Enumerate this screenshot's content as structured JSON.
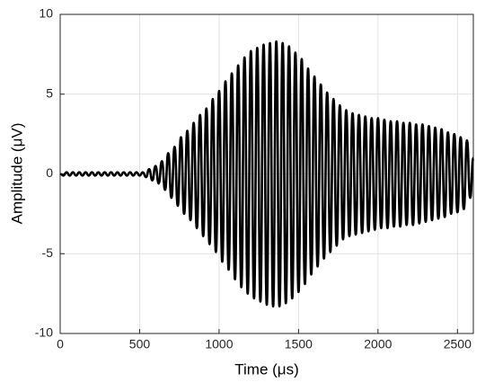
{
  "chart_data": {
    "type": "line",
    "xlabel": "Time (μs)",
    "ylabel": "Amplitude (μV)",
    "x": [
      0,
      20,
      40,
      60,
      80,
      100,
      120,
      140,
      160,
      180,
      200,
      220,
      240,
      260,
      280,
      300,
      320,
      340,
      360,
      380,
      400,
      420,
      440,
      460,
      480,
      500,
      520,
      540,
      560,
      580,
      600,
      620,
      640,
      660,
      680,
      700,
      720,
      740,
      760,
      780,
      800,
      820,
      840,
      860,
      880,
      900,
      920,
      940,
      960,
      980,
      1000,
      1020,
      1040,
      1060,
      1080,
      1100,
      1120,
      1140,
      1160,
      1180,
      1200,
      1220,
      1240,
      1260,
      1280,
      1300,
      1320,
      1340,
      1360,
      1380,
      1400,
      1420,
      1440,
      1460,
      1480,
      1500,
      1520,
      1540,
      1560,
      1580,
      1600,
      1620,
      1640,
      1660,
      1680,
      1700,
      1720,
      1740,
      1760,
      1780,
      1800,
      1820,
      1840,
      1860,
      1880,
      1900,
      1920,
      1940,
      1960,
      1980,
      2000,
      2020,
      2040,
      2060,
      2080,
      2100,
      2120,
      2140,
      2160,
      2180,
      2200,
      2220,
      2240,
      2260,
      2280,
      2300,
      2320,
      2340,
      2360,
      2380,
      2400,
      2420,
      2440,
      2460,
      2480,
      2500,
      2520,
      2540,
      2560,
      2580,
      2600
    ],
    "series": [
      {
        "color": "#000000",
        "values": [
          0,
          -0.1,
          0.1,
          -0.1,
          0.1,
          -0.1,
          0.1,
          -0.1,
          0.1,
          -0.1,
          0.1,
          -0.1,
          0.1,
          -0.1,
          0.1,
          -0.1,
          0.1,
          -0.1,
          0.1,
          -0.1,
          0.1,
          -0.1,
          0.1,
          -0.1,
          0.1,
          -0.1,
          0.1,
          -0.2,
          0.3,
          -0.4,
          0.5,
          -0.6,
          0.8,
          -1.0,
          1.3,
          -1.5,
          1.7,
          -2.0,
          2.3,
          -2.5,
          2.7,
          -2.9,
          3.2,
          -3.4,
          3.7,
          -3.9,
          4.1,
          -4.4,
          4.7,
          -4.9,
          5.2,
          -5.5,
          5.8,
          -6.0,
          6.3,
          -6.6,
          6.8,
          -7.1,
          7.3,
          -7.5,
          7.7,
          -7.8,
          7.9,
          -8.0,
          8.1,
          -8.2,
          8.2,
          -8.3,
          8.3,
          -8.3,
          8.2,
          -8.1,
          8.0,
          -7.8,
          7.6,
          -7.4,
          7.2,
          -6.9,
          6.6,
          -6.3,
          6.1,
          -5.8,
          5.6,
          -5.3,
          5.1,
          -4.9,
          4.7,
          -4.5,
          4.3,
          -4.1,
          4.0,
          -3.9,
          3.8,
          -3.8,
          3.7,
          -3.7,
          3.6,
          -3.6,
          3.5,
          -3.5,
          3.5,
          -3.4,
          3.4,
          -3.4,
          3.3,
          -3.3,
          3.3,
          -3.3,
          3.2,
          -3.2,
          3.2,
          -3.2,
          3.1,
          -3.1,
          3.1,
          -3.0,
          3.0,
          -2.9,
          2.9,
          -2.8,
          2.8,
          -2.7,
          2.6,
          -2.5,
          2.5,
          -2.4,
          2.3,
          -2.2,
          2.1,
          -1.5,
          1.0
        ]
      }
    ],
    "xlim": [
      0,
      2600
    ],
    "xticks": [
      0,
      500,
      1000,
      1500,
      2000,
      2500
    ],
    "ylim": [
      -10,
      10
    ],
    "yticks": [
      -10,
      -5,
      0,
      5,
      10
    ],
    "grid": true
  }
}
